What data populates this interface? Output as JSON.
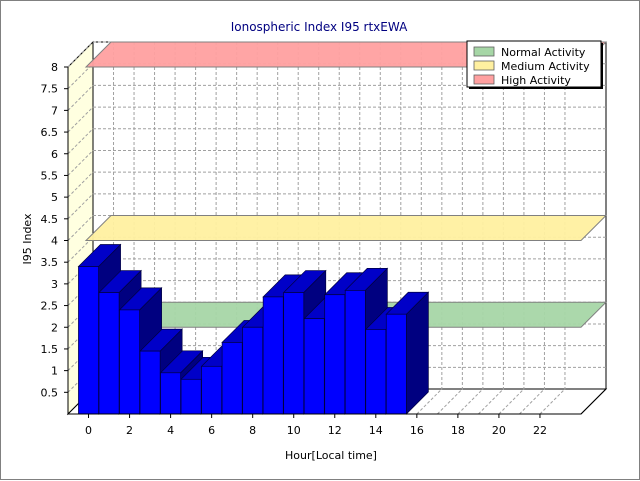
{
  "chart_data": {
    "type": "bar",
    "title": "Ionospheric Index I95 rtxEWA",
    "xlabel": "Hour[Local time]",
    "ylabel": "I95 Index",
    "x": [
      0,
      1,
      2,
      3,
      4,
      5,
      6,
      7,
      8,
      9,
      10,
      11,
      12,
      13,
      14,
      15
    ],
    "values": [
      3.4,
      2.8,
      2.4,
      1.45,
      0.95,
      0.8,
      1.1,
      1.65,
      2.0,
      2.7,
      2.8,
      2.2,
      2.75,
      2.85,
      1.95,
      2.3
    ],
    "xlim": [
      -1,
      24
    ],
    "ylim": [
      0,
      8
    ],
    "xticks": [
      "0",
      "2",
      "4",
      "6",
      "8",
      "10",
      "12",
      "14",
      "16",
      "18",
      "20",
      "22"
    ],
    "yticks": [
      "0.5",
      "1",
      "1.5",
      "2",
      "2.5",
      "3",
      "3.5",
      "4",
      "4.5",
      "5",
      "5.5",
      "6",
      "6.5",
      "7",
      "7.5",
      "8"
    ],
    "bar_color": "#0000FF",
    "grid": true,
    "bands": [
      {
        "name": "Normal Activity",
        "value": 2.0,
        "color": "#A6D6A6"
      },
      {
        "name": "Medium Activity",
        "value": 4.0,
        "color": "#FFF0A0"
      },
      {
        "name": "High Activity",
        "value": 8.0,
        "color": "#FFA0A0"
      }
    ],
    "legend_position": "top-right"
  }
}
